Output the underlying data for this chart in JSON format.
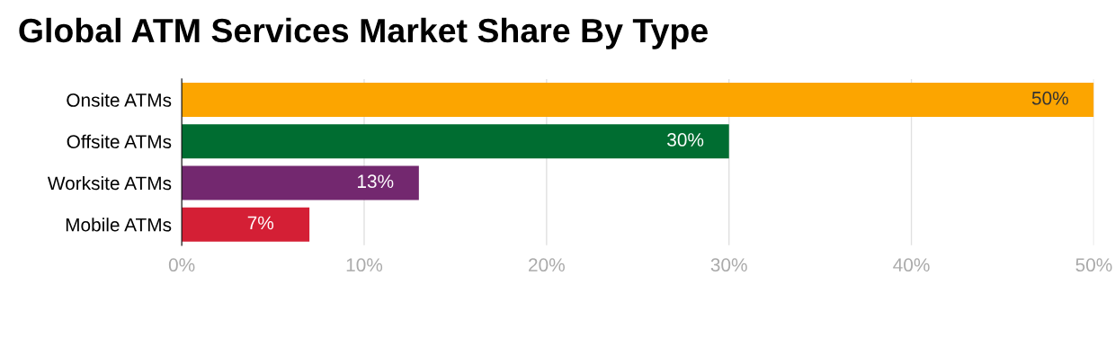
{
  "chart_data": {
    "type": "bar",
    "orientation": "horizontal",
    "title": "Global ATM Services Market Share By Type",
    "categories": [
      "Onsite ATMs",
      "Offsite ATMs",
      "Worksite ATMs",
      "Mobile ATMs"
    ],
    "values": [
      50,
      30,
      13,
      7
    ],
    "colors": [
      "#fca500",
      "#006d31",
      "#73286f",
      "#d41f35"
    ],
    "value_labels": [
      "50%",
      "30%",
      "13%",
      "7%"
    ],
    "xlim": [
      0,
      50
    ],
    "xticks": [
      {
        "value": 0,
        "label": "0%"
      },
      {
        "value": 10,
        "label": "10%"
      },
      {
        "value": 20,
        "label": "20%"
      },
      {
        "value": 30,
        "label": "30%"
      },
      {
        "value": 40,
        "label": "40%"
      },
      {
        "value": 50,
        "label": "50%"
      }
    ],
    "grid": "x"
  }
}
